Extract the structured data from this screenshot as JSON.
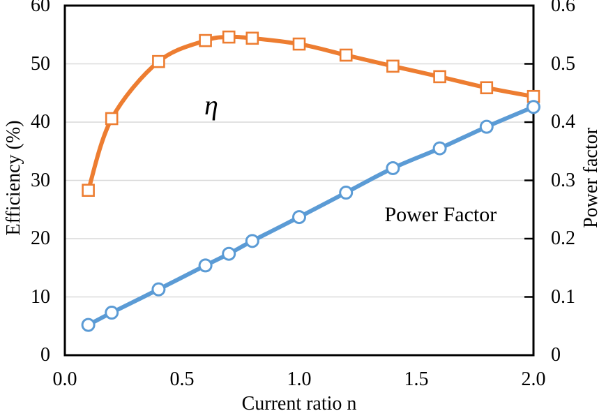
{
  "figure": {
    "background": "#FFFFFF"
  },
  "chart_data": {
    "type": "line",
    "title": "",
    "xlabel": "Current ratio n",
    "ylabel_left": "Efficiency (%)",
    "ylabel_right": "Power factor",
    "x_range": [
      0,
      2
    ],
    "y_left_range": [
      0,
      60
    ],
    "y_right_range": [
      0,
      0.6
    ],
    "x_tick_labels": [
      "0.0",
      "0.5",
      "1.0",
      "1.5",
      "2.0"
    ],
    "x_tick_values": [
      0,
      0.5,
      1.0,
      1.5,
      2.0
    ],
    "y_left_tick_labels": [
      "0",
      "10",
      "20",
      "30",
      "40",
      "50",
      "60"
    ],
    "y_left_tick_values": [
      0,
      10,
      20,
      30,
      40,
      50,
      60
    ],
    "y_right_tick_labels": [
      "0",
      "0.1",
      "0.2",
      "0.3",
      "0.4",
      "0.5",
      "0.6"
    ],
    "y_right_tick_values": [
      0,
      0.1,
      0.2,
      0.3,
      0.4,
      0.5,
      0.6
    ],
    "grid": true,
    "legend_position": "none",
    "colors": {
      "efficiency_series": "#ED7D31",
      "power_factor_series": "#5B9BD5",
      "gridline": "#D9D9D9",
      "axis": "#000000",
      "marker_fill": "#FFFFFF"
    },
    "series": [
      {
        "name": "Efficiency (eta)",
        "axis": "left",
        "marker": "square",
        "color": "#ED7D31",
        "x": [
          0.1,
          0.2,
          0.4,
          0.6,
          0.7,
          0.8,
          1.0,
          1.2,
          1.4,
          1.6,
          1.8,
          2.0
        ],
        "values": [
          28.3,
          40.6,
          50.4,
          54.0,
          54.6,
          54.4,
          53.4,
          51.5,
          49.6,
          47.8,
          45.9,
          44.4
        ]
      },
      {
        "name": "Power Factor",
        "axis": "right",
        "marker": "circle",
        "color": "#5B9BD5",
        "x": [
          0.1,
          0.2,
          0.4,
          0.6,
          0.7,
          0.8,
          1.0,
          1.2,
          1.4,
          1.6,
          1.8,
          2.0
        ],
        "values": [
          0.052,
          0.073,
          0.113,
          0.154,
          0.174,
          0.196,
          0.237,
          0.279,
          0.321,
          0.355,
          0.392,
          0.426
        ]
      }
    ],
    "annotations": [
      {
        "text": "η",
        "x": 0.625,
        "y": 42.9,
        "font_size": 40,
        "italic": true
      },
      {
        "text": "Power Factor",
        "x": 1.604,
        "y": 24.1,
        "font_size": 30,
        "italic": false
      }
    ]
  }
}
